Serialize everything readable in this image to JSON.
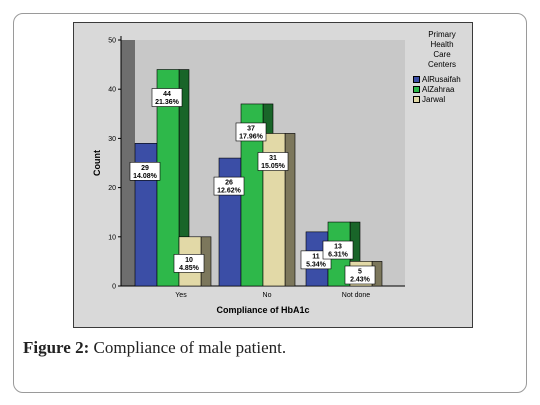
{
  "caption": {
    "label": "Figure 2:",
    "text": " Compliance of male patient."
  },
  "chart_data": {
    "type": "bar",
    "style": "3d-clustered",
    "categories": [
      "Yes",
      "No",
      "Not done"
    ],
    "xlabel": "Compliance of HbA1c",
    "ylabel": "Count",
    "ylim": [
      0,
      50
    ],
    "yticks": [
      0,
      10,
      20,
      30,
      40,
      50
    ],
    "grid": false,
    "legend_title": [
      "Primary",
      "Health",
      "Care",
      "Centers"
    ],
    "legend_position": "right",
    "series": [
      {
        "name": "AlRusaifah",
        "color": "#3b4ea6",
        "values": [
          29,
          26,
          11
        ],
        "percent_labels": [
          "14.08%",
          "12.62%",
          "5.34%"
        ]
      },
      {
        "name": "AlZahraa",
        "color": "#2eb84a",
        "values": [
          44,
          37,
          13
        ],
        "percent_labels": [
          "21.36%",
          "17.96%",
          "6.31%"
        ]
      },
      {
        "name": "Jarwal",
        "color": "#e2d9a7",
        "values": [
          10,
          31,
          5
        ],
        "percent_labels": [
          "4.85%",
          "15.05%",
          "2.43%"
        ]
      }
    ]
  }
}
